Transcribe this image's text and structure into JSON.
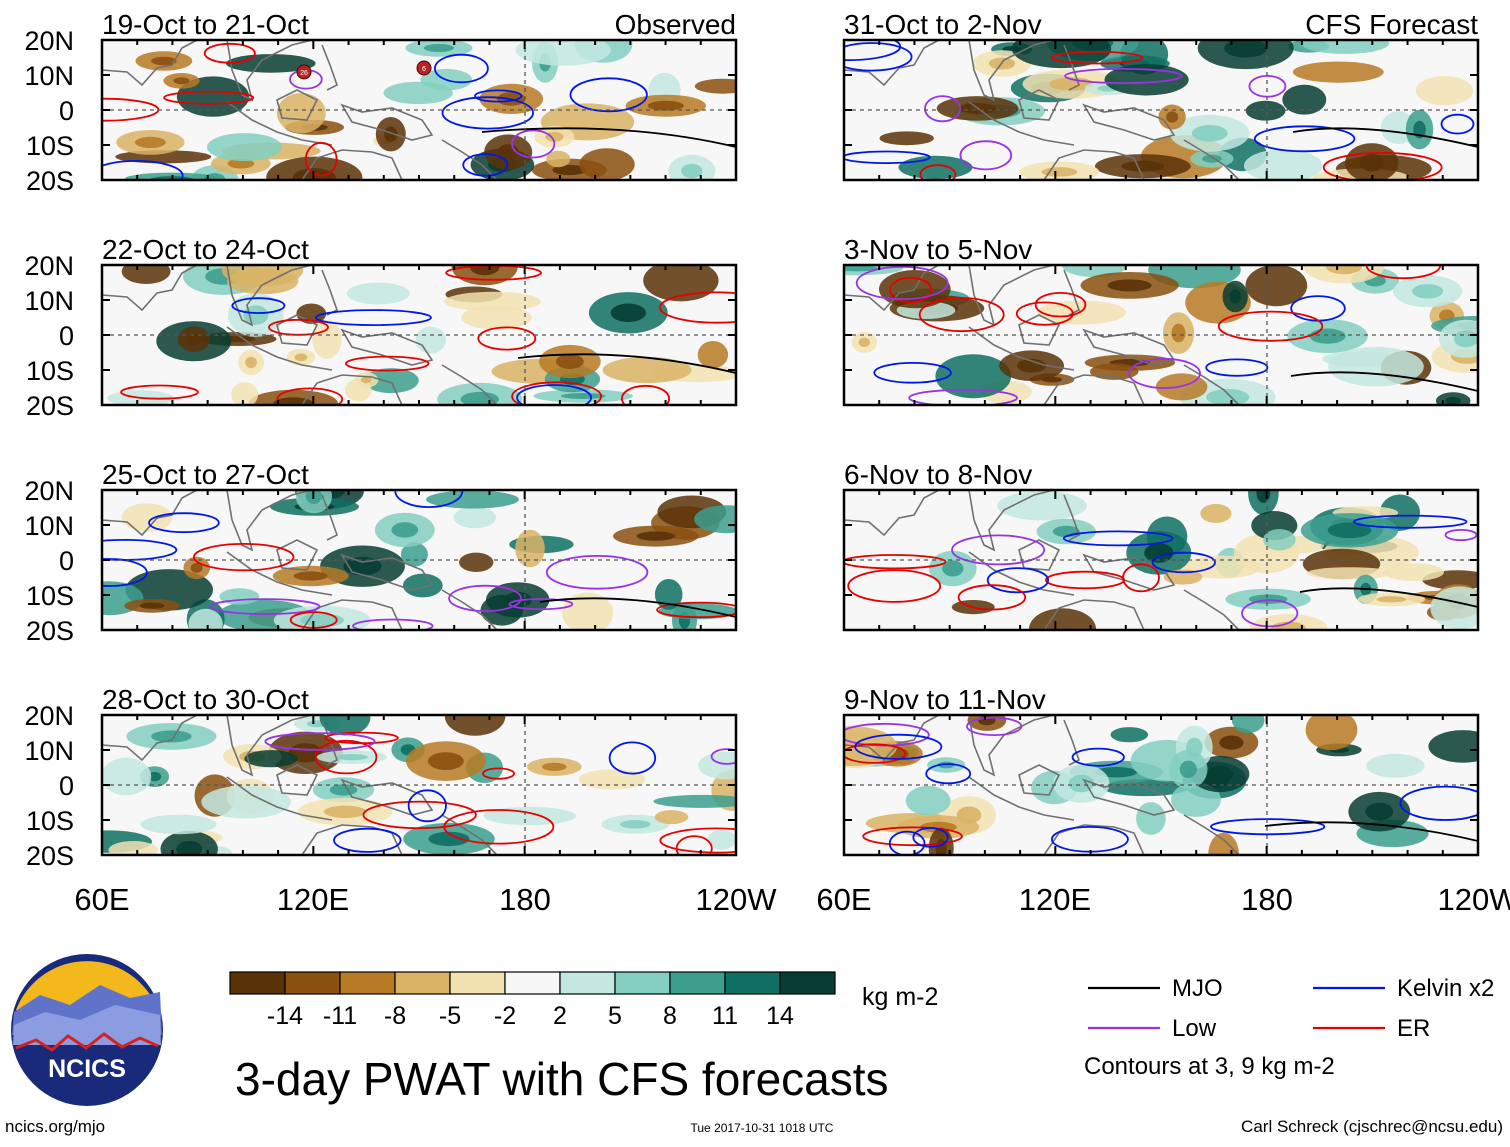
{
  "figure": {
    "title": "3-day PWAT with CFS forecasts",
    "footer_left": "ncics.org/mjo",
    "footer_center": "Tue 2017-10-31 1018 UTC",
    "footer_right": "Carl Schreck (cjschrec@ncsu.edu)",
    "logo_text": "NCICS"
  },
  "axes": {
    "lat_labels": [
      "20N",
      "10N",
      "0",
      "10S",
      "20S"
    ],
    "lon_labels": [
      "60E",
      "120E",
      "180",
      "120W"
    ]
  },
  "panels_left": [
    {
      "label": "19-Oct to 21-Oct",
      "tag": "Observed"
    },
    {
      "label": "22-Oct to 24-Oct",
      "tag": ""
    },
    {
      "label": "25-Oct to 27-Oct",
      "tag": ""
    },
    {
      "label": "28-Oct to 30-Oct",
      "tag": ""
    }
  ],
  "panels_right": [
    {
      "label": "31-Oct to 2-Nov",
      "tag": "CFS Forecast"
    },
    {
      "label": "3-Nov to 5-Nov",
      "tag": ""
    },
    {
      "label": "6-Nov to 8-Nov",
      "tag": ""
    },
    {
      "label": "9-Nov to 11-Nov",
      "tag": ""
    }
  ],
  "colorbar": {
    "colors": [
      "#5a3208",
      "#8a500f",
      "#b77a26",
      "#d9b365",
      "#f2e2b2",
      "#f7f7f7",
      "#c3e8e1",
      "#84cfc1",
      "#3c9f8e",
      "#0f6f62",
      "#073d33"
    ],
    "tick_labels": [
      "-14",
      "-11",
      "-8",
      "-5",
      "-2",
      "2",
      "5",
      "8",
      "11",
      "14"
    ],
    "units": "kg m-2"
  },
  "legend": {
    "items": [
      {
        "label": "MJO",
        "color": "#000000"
      },
      {
        "label": "Kelvin x2",
        "color": "#0018e6"
      },
      {
        "label": "Low",
        "color": "#9932e6"
      },
      {
        "label": "ER",
        "color": "#e60000"
      }
    ],
    "note": "Contours at 3, 9 kg m-2"
  },
  "typhoon_markers": [
    "26",
    "6"
  ]
}
